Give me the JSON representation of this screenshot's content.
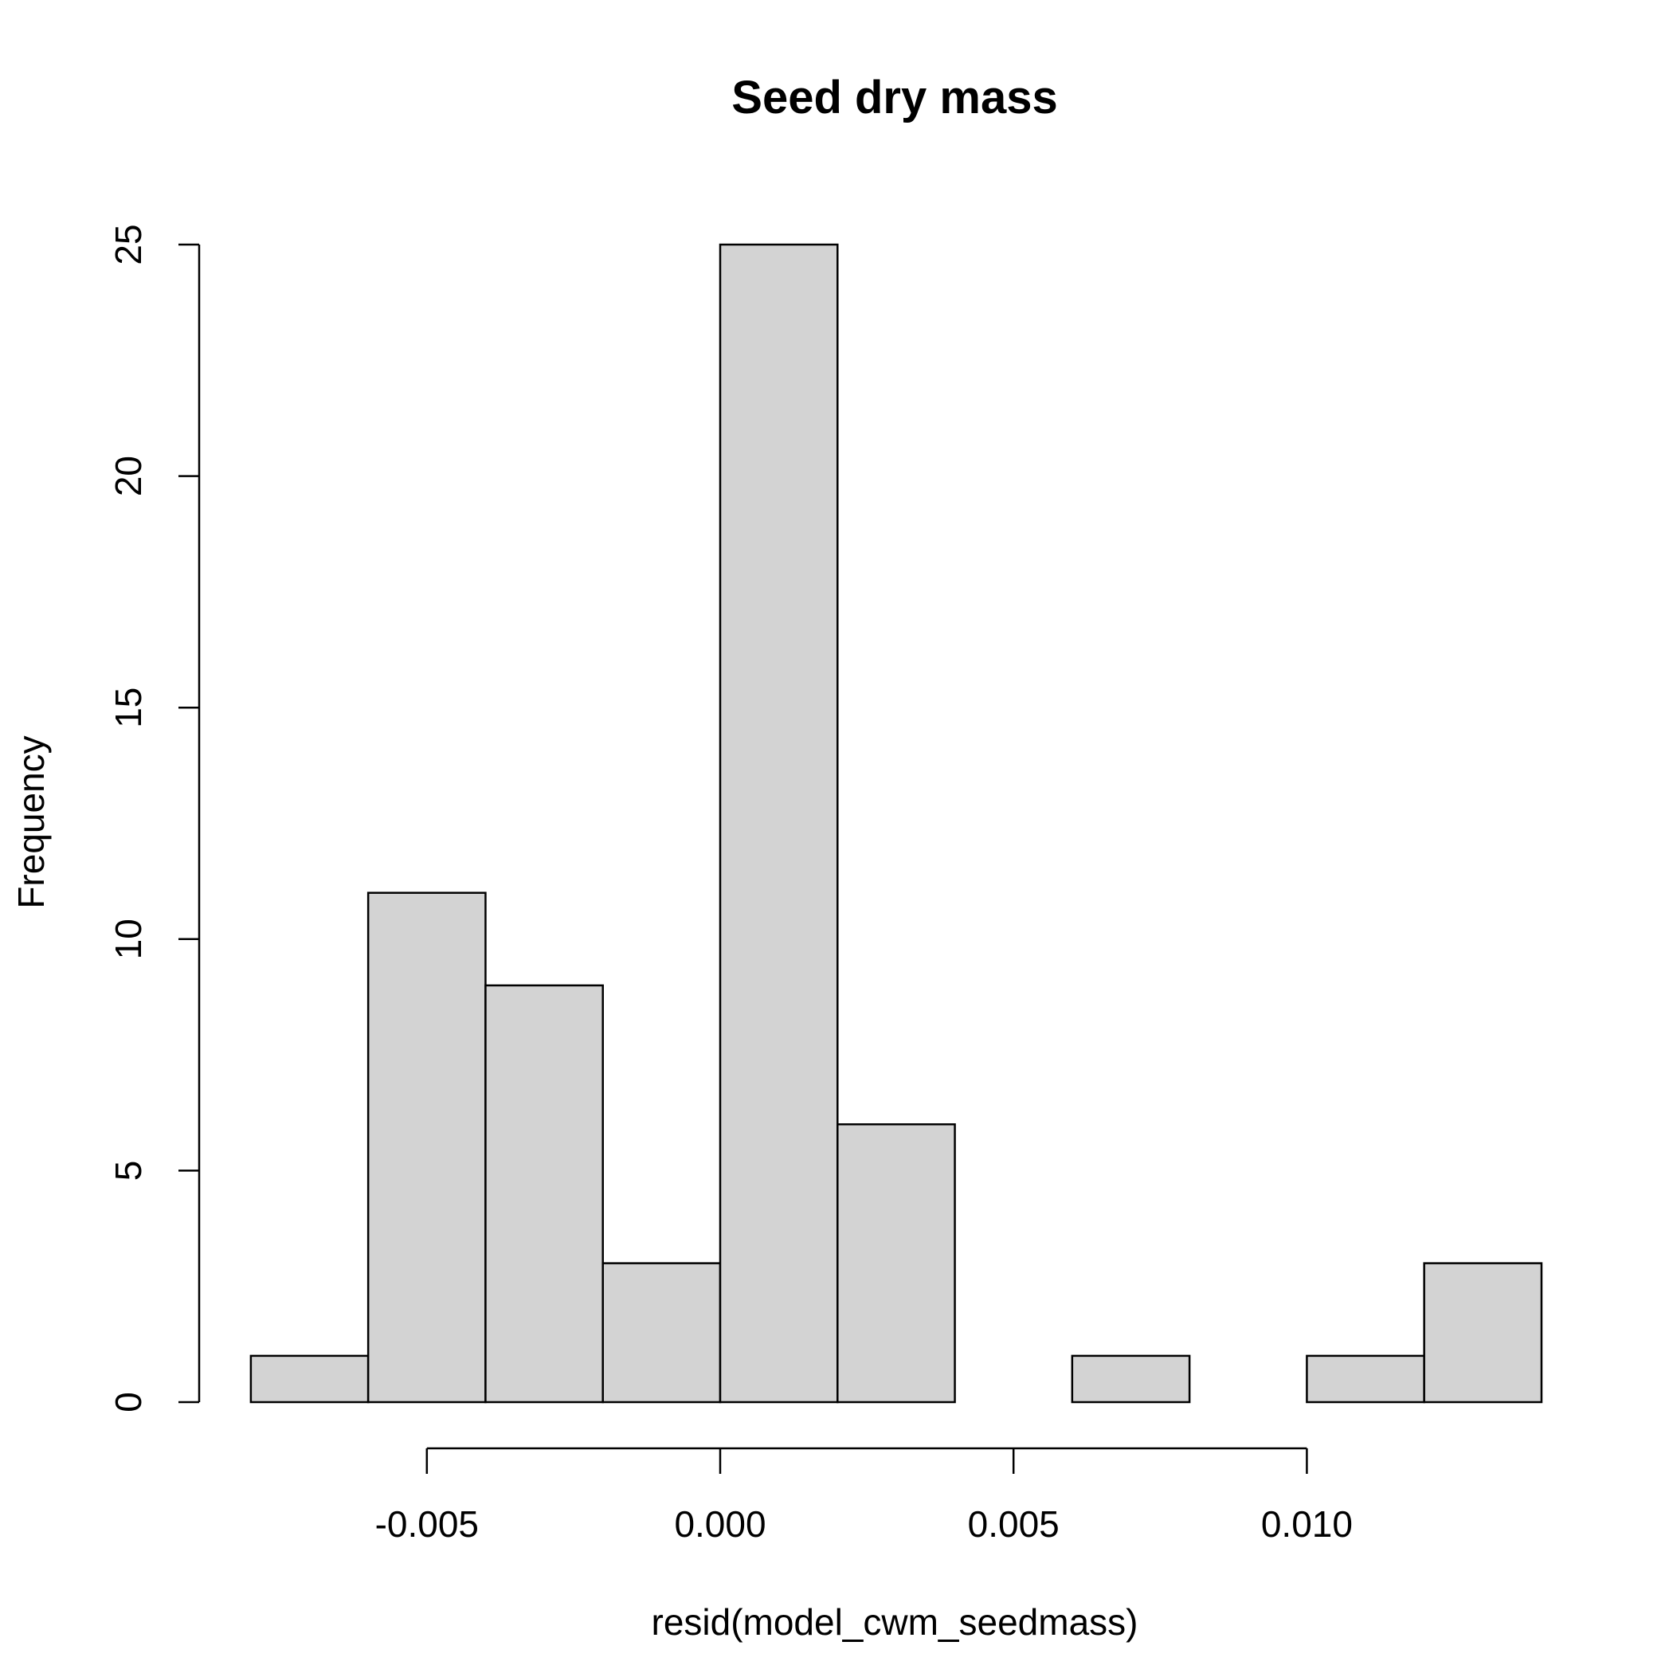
{
  "chart_data": {
    "type": "bar",
    "title": "Seed dry mass",
    "xlabel": "resid(model_cwm_seedmass)",
    "ylabel": "Frequency",
    "bin_edges": [
      -0.008,
      -0.006,
      -0.004,
      -0.002,
      0.0,
      0.002,
      0.004,
      0.006,
      0.008,
      0.01,
      0.012,
      0.014
    ],
    "counts": [
      1,
      11,
      9,
      3,
      25,
      6,
      0,
      1,
      0,
      1,
      3
    ],
    "xlim": [
      -0.0085,
      0.0145
    ],
    "ylim": [
      0,
      25
    ],
    "x_ticks": [
      -0.005,
      0.0,
      0.005,
      0.01
    ],
    "x_tick_labels": [
      "-0.005",
      "0.000",
      "0.005",
      "0.010"
    ],
    "y_ticks": [
      0,
      5,
      10,
      15,
      20,
      25
    ],
    "y_tick_labels": [
      "0",
      "5",
      "10",
      "15",
      "20",
      "25"
    ],
    "bar_fill": "#d3d3d3",
    "grid": false,
    "legend": "none"
  }
}
